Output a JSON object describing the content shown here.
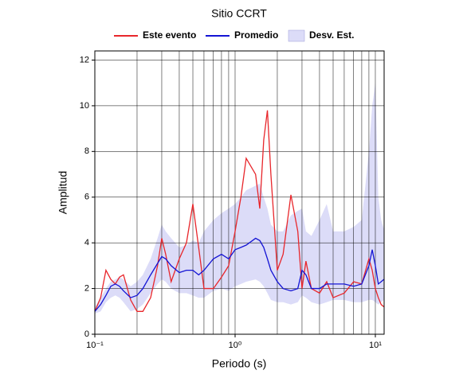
{
  "chart_data": {
    "type": "line",
    "title": "Sitio CCRT",
    "x_label": "Periodo (s)",
    "y_label": "Amplitud",
    "x_log": true,
    "grid": true,
    "xlim": [
      0.1,
      11.55
    ],
    "ylim": [
      0,
      12.4
    ],
    "xticks": [
      {
        "value": 0.1,
        "label": "10⁻¹"
      },
      {
        "value": 1,
        "label": "10⁰"
      },
      {
        "value": 10,
        "label": "10¹"
      }
    ],
    "yticks": [
      0,
      2,
      4,
      6,
      8,
      10,
      12
    ],
    "x": [
      0.1,
      0.11,
      0.12,
      0.13,
      0.14,
      0.15,
      0.16,
      0.18,
      0.2,
      0.22,
      0.25,
      0.28,
      0.3,
      0.32,
      0.35,
      0.4,
      0.45,
      0.5,
      0.55,
      0.6,
      0.7,
      0.8,
      0.9,
      1.0,
      1.1,
      1.2,
      1.4,
      1.5,
      1.6,
      1.7,
      1.8,
      2.0,
      2.2,
      2.5,
      2.8,
      3.0,
      3.2,
      3.5,
      4,
      4.5,
      5,
      6,
      7,
      8,
      9,
      9.5,
      10,
      10.5,
      11,
      11.5
    ],
    "series": [
      {
        "name": "Este evento",
        "color": "#e8262b",
        "values": [
          1.0,
          1.6,
          2.8,
          2.4,
          2.2,
          2.5,
          2.6,
          1.5,
          1.0,
          1.0,
          1.6,
          3.0,
          4.2,
          3.5,
          2.3,
          3.3,
          4.0,
          5.7,
          3.8,
          2.0,
          2.0,
          2.5,
          3.0,
          4.5,
          6.0,
          7.7,
          7.0,
          5.5,
          8.5,
          9.8,
          7.0,
          2.8,
          3.5,
          6.1,
          4.5,
          2.0,
          3.2,
          2.0,
          1.8,
          2.3,
          1.6,
          1.8,
          2.3,
          2.2,
          3.3,
          2.8,
          2.0,
          1.6,
          1.3,
          1.2
        ]
      },
      {
        "name": "Promedio",
        "color": "#1414d4",
        "values": [
          1.0,
          1.3,
          1.7,
          2.1,
          2.2,
          2.1,
          1.9,
          1.6,
          1.7,
          2.0,
          2.6,
          3.1,
          3.4,
          3.3,
          3.0,
          2.7,
          2.8,
          2.8,
          2.6,
          2.8,
          3.3,
          3.5,
          3.3,
          3.7,
          3.8,
          3.9,
          4.2,
          4.1,
          3.8,
          3.3,
          2.8,
          2.3,
          2.0,
          1.9,
          2.0,
          2.8,
          2.6,
          2.0,
          2.0,
          2.2,
          2.2,
          2.2,
          2.1,
          2.2,
          3.0,
          3.7,
          3.0,
          2.2,
          2.3,
          2.4
        ]
      },
      {
        "name": "Desv. Est.",
        "color": "#dcdcf8",
        "upper": [
          1.2,
          1.6,
          2.0,
          2.3,
          2.4,
          2.5,
          2.4,
          2.1,
          2.3,
          2.6,
          3.3,
          4.2,
          4.8,
          4.5,
          4.2,
          3.8,
          3.9,
          4.1,
          4.0,
          4.5,
          5.0,
          5.3,
          5.5,
          5.7,
          6.0,
          6.3,
          6.5,
          6.6,
          6.0,
          5.5,
          4.8,
          4.5,
          4.5,
          5.2,
          5.4,
          5.5,
          4.5,
          4.3,
          5.0,
          5.7,
          4.5,
          4.5,
          4.7,
          5.0,
          8.0,
          10.0,
          11.0,
          6.0,
          5.0,
          4.6
        ],
        "lower": [
          0.9,
          1.0,
          1.4,
          1.6,
          1.7,
          1.6,
          1.4,
          1.0,
          1.1,
          1.3,
          1.8,
          2.2,
          2.4,
          2.3,
          2.0,
          1.8,
          1.8,
          1.7,
          1.6,
          1.6,
          1.9,
          2.0,
          1.9,
          2.1,
          2.2,
          2.3,
          2.4,
          2.3,
          2.1,
          1.8,
          1.5,
          1.4,
          1.4,
          1.3,
          1.4,
          1.7,
          1.6,
          1.4,
          1.3,
          1.4,
          1.5,
          1.5,
          1.4,
          1.4,
          1.5,
          1.5,
          1.4,
          1.3,
          1.4,
          1.5
        ]
      }
    ]
  }
}
